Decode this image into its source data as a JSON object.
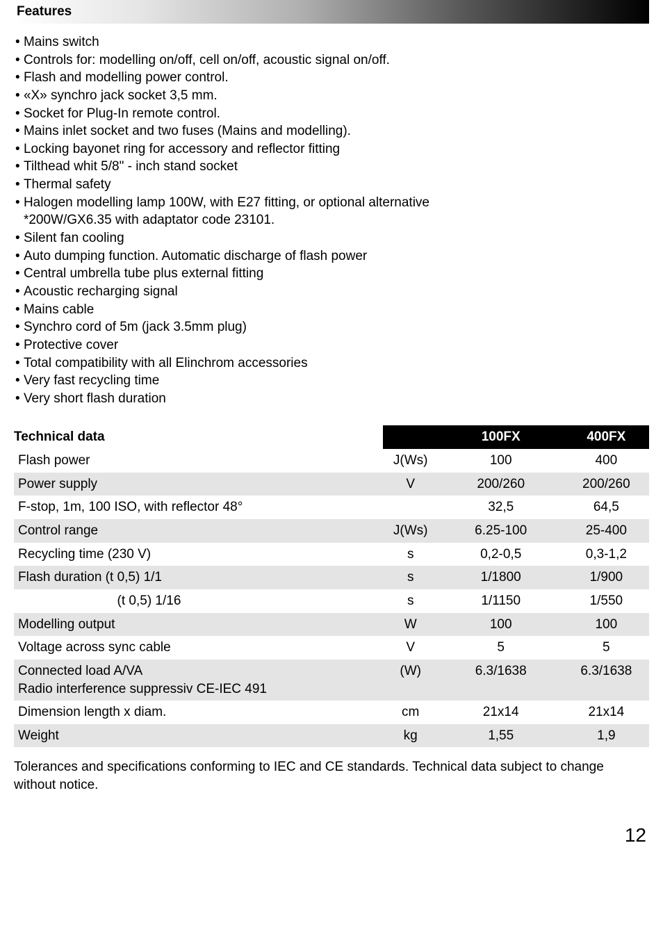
{
  "features": {
    "header": "Features",
    "items": [
      "Mains switch",
      "Controls for: modelling on/off, cell on/off, acoustic signal on/off.",
      "Flash and modelling power control.",
      "«X» synchro jack socket 3,5 mm.",
      "Socket for Plug-In remote control.",
      "Mains inlet socket and two fuses (Mains and modelling).",
      "Locking bayonet ring for accessory and reflector fitting",
      "Tilthead whit 5/8\" - inch stand socket",
      "Thermal safety",
      "Halogen modelling lamp 100W, with E27 fitting, or optional alternative\n*200W/GX6.35 with adaptator code 23101.",
      "Silent fan cooling",
      "Auto dumping function. Automatic discharge of flash power",
      "Central umbrella tube plus external fitting",
      "Acoustic recharging signal",
      "Mains cable",
      "Synchro cord of 5m (jack 3.5mm plug)",
      "Protective cover",
      "Total compatibility with all Elinchrom accessories",
      "Very fast recycling time",
      "Very short flash duration"
    ]
  },
  "tech": {
    "header": "Technical data",
    "col100": "100FX",
    "col400": "400FX",
    "rows": [
      {
        "label": "Flash power",
        "unit": "J(Ws)",
        "v100": "100",
        "v400": "400"
      },
      {
        "label": "Power supply",
        "unit": "V",
        "v100": "200/260",
        "v400": "200/260"
      },
      {
        "label": "F-stop, 1m, 100 ISO, with reflector 48°",
        "unit": "",
        "v100": "32,5",
        "v400": "64,5"
      },
      {
        "label": "Control range",
        "unit": "J(Ws)",
        "v100": "6.25-100",
        "v400": "25-400"
      },
      {
        "label": "Recycling time (230 V)",
        "unit": "s",
        "v100": "0,2-0,5",
        "v400": "0,3-1,2"
      },
      {
        "label": "Flash duration (t 0,5) 1/1",
        "unit": "s",
        "v100": "1/1800",
        "v400": "1/900"
      },
      {
        "label": "                           (t 0,5) 1/16",
        "unit": "s",
        "v100": "1/1150",
        "v400": "1/550"
      },
      {
        "label": "Modelling output",
        "unit": "W",
        "v100": "100",
        "v400": "100"
      },
      {
        "label": "Voltage across sync cable",
        "unit": "V",
        "v100": "5",
        "v400": "5"
      },
      {
        "label": "Connected load A/VA\nRadio interference suppressiv CE-IEC 491",
        "unit": "(W)",
        "v100": "6.3/1638",
        "v400": "6.3/1638"
      },
      {
        "label": "Dimension length x diam.",
        "unit": "cm",
        "v100": "21x14",
        "v400": "21x14"
      },
      {
        "label": "Weight",
        "unit": "kg",
        "v100": "1,55",
        "v400": "1,9"
      }
    ]
  },
  "footnote": "Tolerances and specifications conforming to IEC and CE standards. Technical data subject to change without notice.",
  "page_number": "12"
}
